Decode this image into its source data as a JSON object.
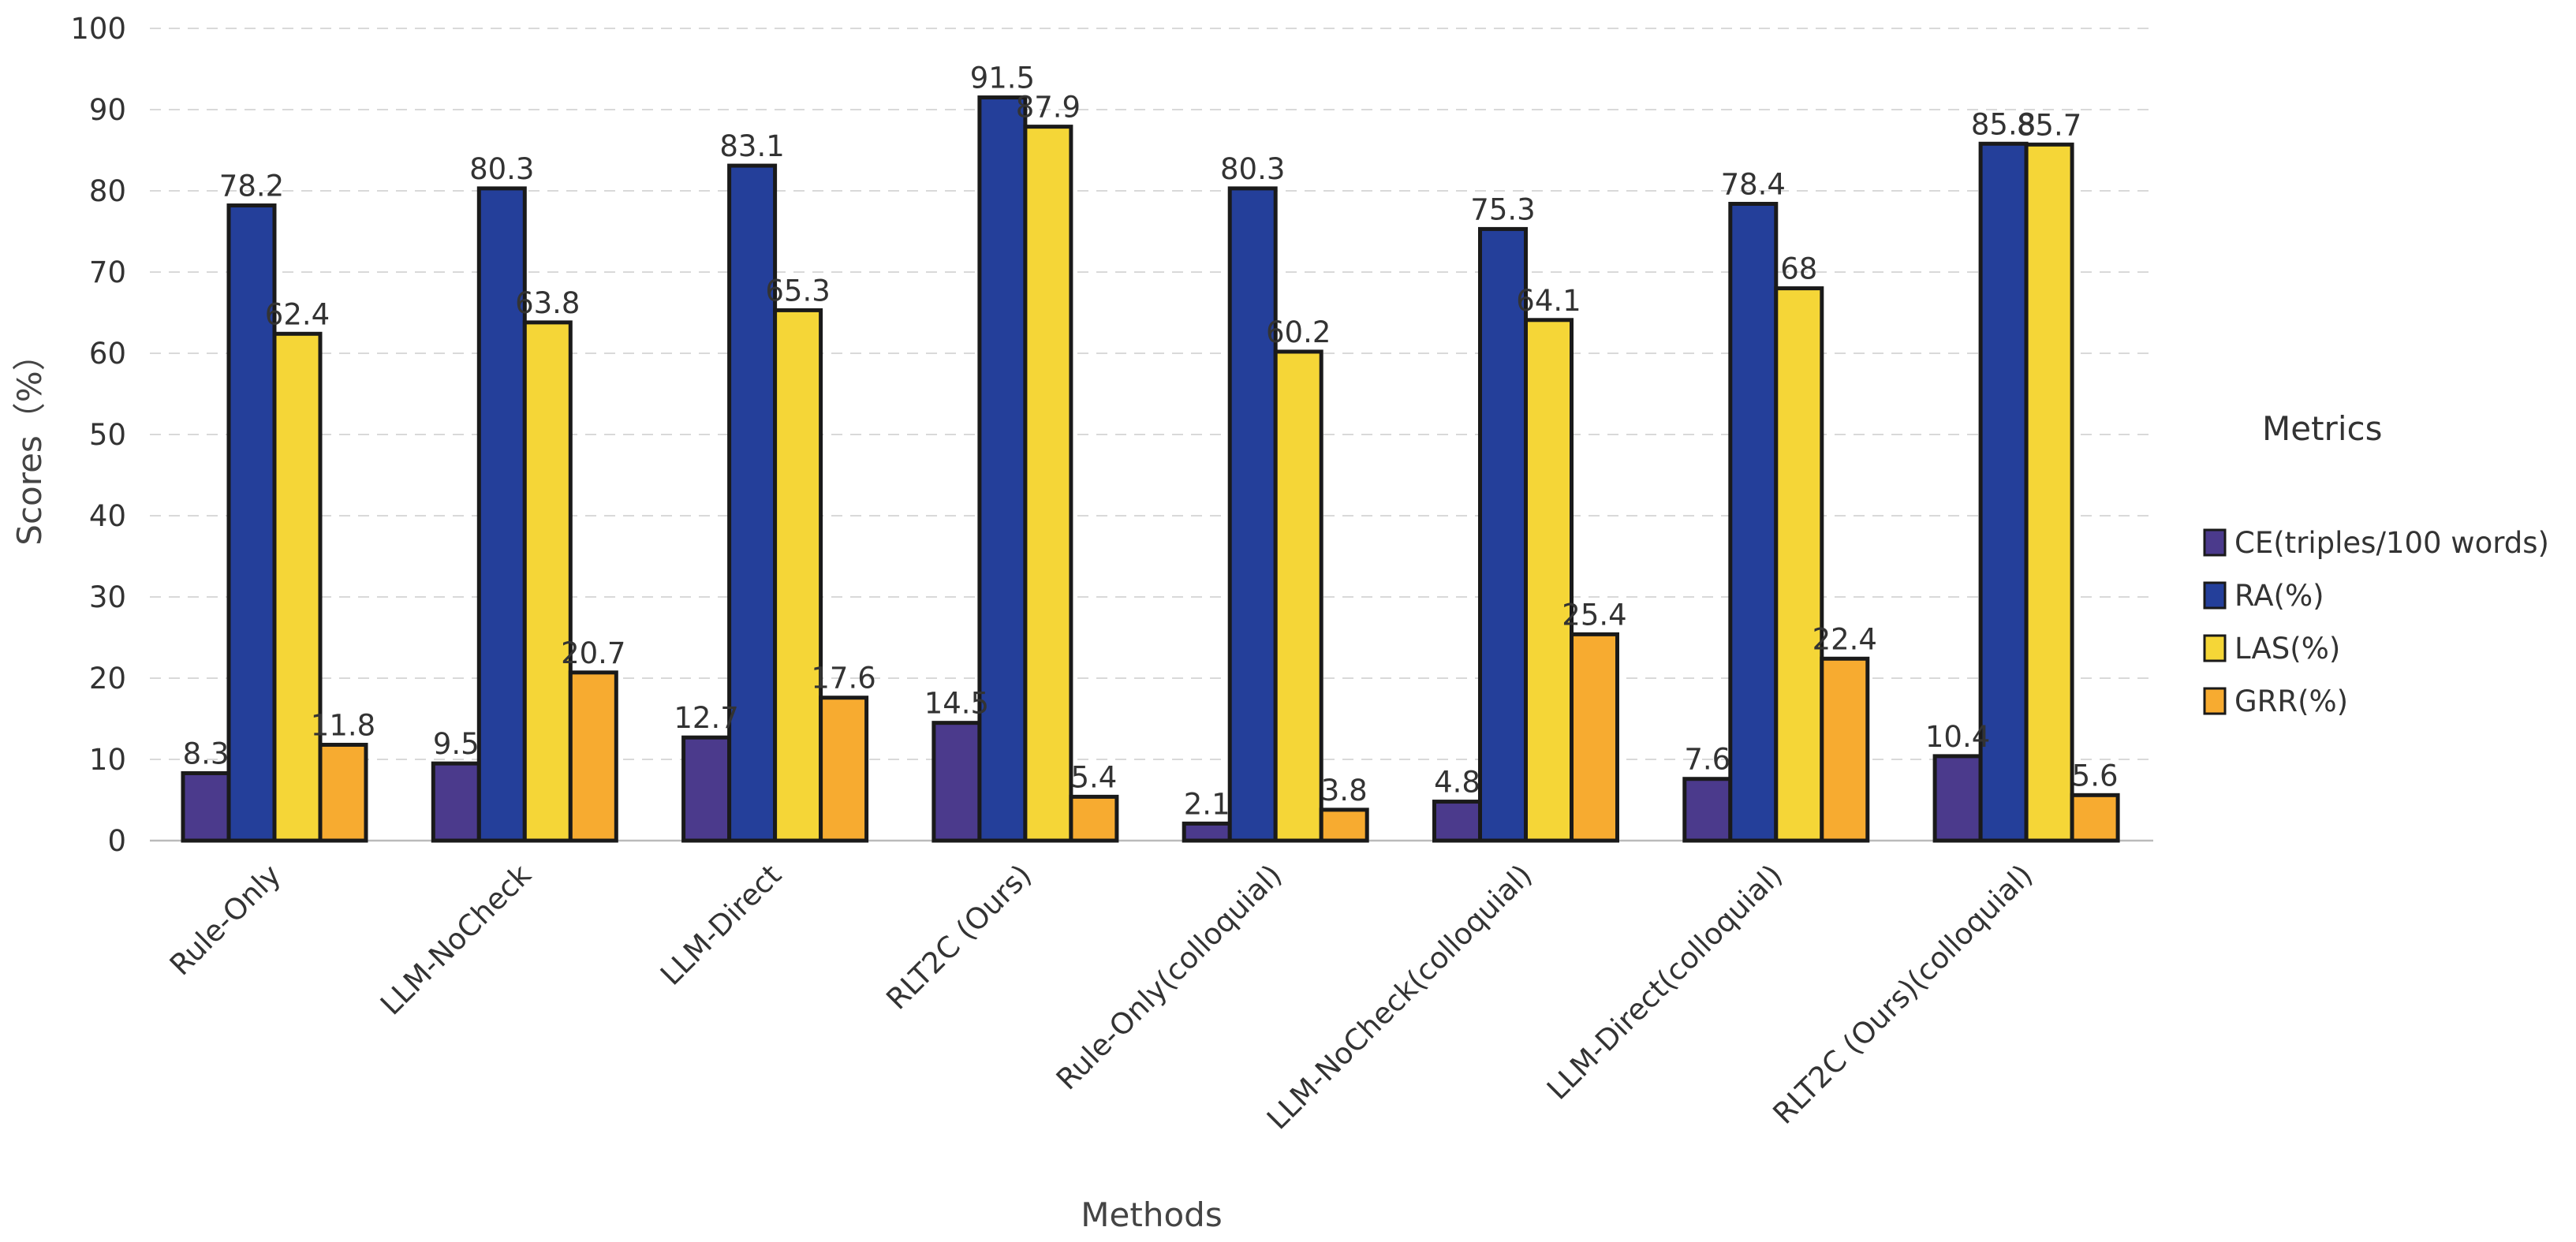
{
  "chart_data": {
    "type": "bar",
    "title": "",
    "xlabel": "Methods",
    "ylabel": "Scores（%）",
    "ylim": [
      0,
      100
    ],
    "yticks": [
      0,
      10,
      20,
      30,
      40,
      50,
      60,
      70,
      80,
      90,
      100
    ],
    "grid": true,
    "legend_title": "Metrics",
    "legend_position": "right",
    "categories": [
      "Rule-Only",
      "LLM-NoCheck",
      "LLM-Direct",
      "RLT2C (Ours)",
      "Rule-Only(colloquial)",
      "LLM-NoCheck(colloquial)",
      "LLM-Direct(colloquial)",
      "RLT2C (Ours)(colloquial)"
    ],
    "series": [
      {
        "name": "CE(triples/100 words)",
        "color": "#4b3a8c",
        "values": [
          8.3,
          9.5,
          12.7,
          14.5,
          2.1,
          4.8,
          7.6,
          10.4
        ]
      },
      {
        "name": "RA(%)",
        "color": "#243f9a",
        "values": [
          78.2,
          80.3,
          83.1,
          91.5,
          80.3,
          75.3,
          78.4,
          85.8
        ]
      },
      {
        "name": "LAS(%)",
        "color": "#f5d637",
        "values": [
          62.4,
          63.8,
          65.3,
          87.9,
          60.2,
          64.1,
          68,
          85.7
        ]
      },
      {
        "name": "GRR(%)",
        "color": "#f7ab30",
        "values": [
          11.8,
          20.7,
          17.6,
          5.4,
          3.8,
          25.4,
          22.4,
          5.6
        ]
      }
    ]
  }
}
